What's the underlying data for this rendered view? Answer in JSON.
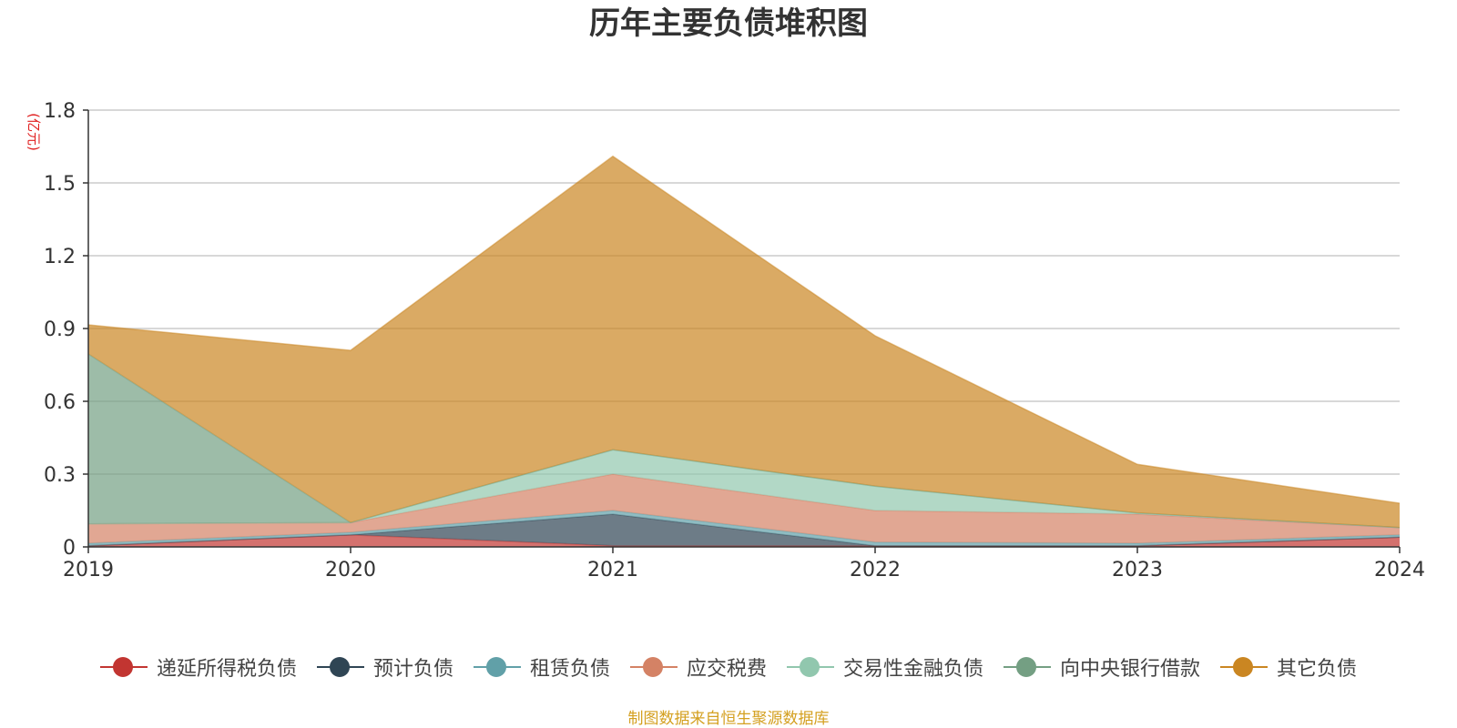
{
  "chart_data": {
    "type": "area",
    "stacked": true,
    "title": "历年主要负债堆积图",
    "ylabel": "(亿元)",
    "xlabel": "",
    "categories": [
      "2019",
      "2020",
      "2021",
      "2022",
      "2023",
      "2024"
    ],
    "ylim": [
      0,
      1.8
    ],
    "yticks": [
      "0",
      "0.3",
      "0.6",
      "0.9",
      "1.2",
      "1.5",
      "1.8"
    ],
    "grid": true,
    "legend_position": "bottom",
    "series": [
      {
        "name": "递延所得税负债",
        "color": "#c23531",
        "values": [
          0.005,
          0.05,
          0.005,
          0.005,
          0.005,
          0.04
        ]
      },
      {
        "name": "预计负债",
        "color": "#2f4554",
        "values": [
          0.0,
          0.0,
          0.13,
          0.0,
          0.0,
          0.0
        ]
      },
      {
        "name": "租赁负债",
        "color": "#61a0a8",
        "values": [
          0.01,
          0.01,
          0.015,
          0.015,
          0.01,
          0.01
        ]
      },
      {
        "name": "应交税费",
        "color": "#d48265",
        "values": [
          0.08,
          0.04,
          0.15,
          0.13,
          0.12,
          0.03
        ]
      },
      {
        "name": "交易性金融负债",
        "color": "#91c7ae",
        "values": [
          0.0,
          0.0,
          0.1,
          0.1,
          0.005,
          0.0
        ]
      },
      {
        "name": "向中央银行借款",
        "color": "#749f83",
        "values": [
          0.7,
          0.0,
          0.0,
          0.0,
          0.0,
          0.0
        ]
      },
      {
        "name": "其它负债",
        "color": "#ca8622",
        "values": [
          0.12,
          0.71,
          1.21,
          0.62,
          0.2,
          0.1
        ]
      }
    ]
  },
  "source_note": "制图数据来自恒生聚源数据库"
}
